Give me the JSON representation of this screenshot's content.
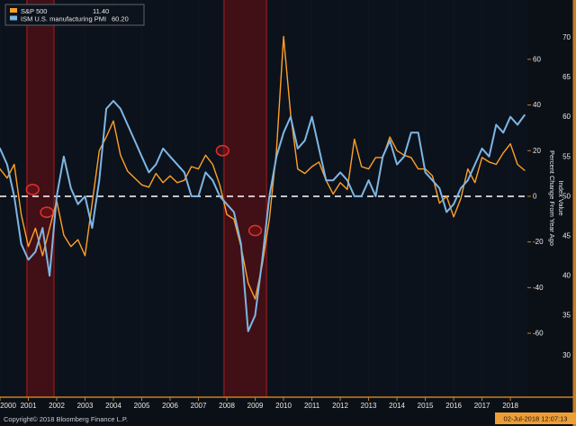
{
  "legend": {
    "series": [
      {
        "label": "S&P 500",
        "value": "11.40",
        "color": "#FFA028"
      },
      {
        "label": "ISM U.S. manufacturing PMI",
        "value": "60.20",
        "color": "#7EB6E4"
      }
    ]
  },
  "axes": {
    "right_percent_title": "Percent Change From Year Ago",
    "right_index_title": "Index Value"
  },
  "footer": {
    "copyright": "Copyright© 2018 Bloomberg Finance L.P.",
    "timestamp": "02-Jul-2018 12:07:13"
  },
  "colors": {
    "background": "#0B1017",
    "sp500": "#FFA028",
    "ism": "#7EB6E4",
    "recession_band": "#451016",
    "recession_edge": "#6E171C",
    "zero_line": "#FFFFFF",
    "axis_spine": "#C97E26",
    "tick_text": "#E8E8E8",
    "annotation": "#E03131",
    "timestamp_chip": "#EF9E35"
  },
  "chart_data": {
    "type": "line",
    "title": "",
    "xlabel": "",
    "ylabel_right_inner": "Percent Change From Year Ago",
    "ylabel_right_outer": "Index Value",
    "xlim": [
      2000,
      2018.6
    ],
    "pct_lim": [
      -88,
      86
    ],
    "idx_lim": [
      24.7,
      74.7
    ],
    "x_ticks": [
      2000,
      2001,
      2002,
      2003,
      2004,
      2005,
      2006,
      2007,
      2008,
      2009,
      2010,
      2011,
      2012,
      2013,
      2014,
      2015,
      2016,
      2017,
      2018
    ],
    "percent_ticks": [
      60,
      40,
      20,
      0,
      -20,
      -40,
      -60
    ],
    "index_ticks": [
      70,
      65,
      60,
      55,
      50,
      45,
      40,
      35,
      30
    ],
    "x_start": 2000.0,
    "x_step": 0.25,
    "zero_line_percent": 0,
    "grid": "none",
    "legend_position": "top-left",
    "series": [
      {
        "name": "S&P 500",
        "axis": "percent",
        "color": "#FFA028",
        "last_value": 11.4,
        "values": [
          12,
          8,
          14,
          -8,
          -22,
          -14,
          -26,
          -14,
          -2,
          -17,
          -22,
          -19,
          -26,
          -3,
          20,
          26,
          33,
          18,
          11,
          8,
          5,
          4,
          10,
          6,
          9,
          6,
          7,
          13,
          12,
          18,
          14,
          5,
          -8,
          -10,
          -22,
          -38,
          -45,
          -30,
          -10,
          20,
          70,
          36,
          12,
          10,
          13,
          15,
          7,
          1,
          6,
          3,
          25,
          13,
          12,
          17,
          17,
          26,
          20,
          18,
          17,
          12,
          12,
          9,
          -3,
          0,
          -9,
          -1,
          12,
          6,
          17,
          15,
          14,
          19,
          23,
          14,
          11.4
        ]
      },
      {
        "name": "ISM U.S. manufacturing PMI",
        "axis": "index",
        "color": "#7EB6E4",
        "last_value": 60.2,
        "values": [
          56,
          54,
          50,
          44,
          42,
          43,
          46,
          40,
          50,
          55,
          51,
          49,
          50,
          46,
          52,
          61,
          62,
          61,
          59,
          57,
          55,
          53,
          54,
          56,
          55,
          54,
          53,
          50,
          50,
          53,
          52,
          50,
          49,
          48,
          44,
          33,
          35,
          42,
          50,
          55,
          58,
          60,
          56,
          57,
          60,
          56,
          52,
          52,
          53,
          52,
          50,
          50,
          52,
          50,
          55,
          57,
          54,
          55,
          58,
          58,
          53,
          52,
          51,
          48,
          49,
          51,
          52,
          54,
          56,
          55,
          59,
          58,
          60,
          59,
          60.2
        ]
      }
    ],
    "recession_bands": [
      [
        2000.95,
        2001.9
      ],
      [
        2007.9,
        2009.4
      ]
    ],
    "annotations": [
      {
        "shape": "ellipse",
        "x": 2001.15,
        "y_percent": 3,
        "rx_years": 0.22,
        "ry_percent": 2.2
      },
      {
        "shape": "ellipse",
        "x": 2001.65,
        "y_percent": -7,
        "rx_years": 0.22,
        "ry_percent": 2.2
      },
      {
        "shape": "ellipse",
        "x": 2007.85,
        "y_percent": 20,
        "rx_years": 0.22,
        "ry_percent": 2.2
      },
      {
        "shape": "ellipse",
        "x": 2009.0,
        "y_percent": -15,
        "rx_years": 0.22,
        "ry_percent": 2.2
      }
    ]
  }
}
